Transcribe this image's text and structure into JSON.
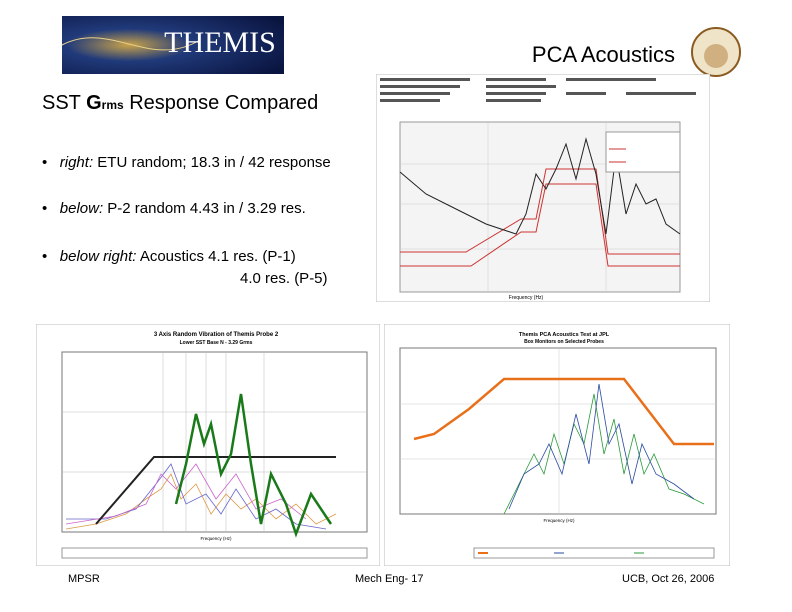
{
  "header": {
    "logo": "THEMIS",
    "title": "PCA Acoustics"
  },
  "slide_title": {
    "prefix": "SST ",
    "bold": "G",
    "sub": "rms",
    "suffix": " Response Compared"
  },
  "bullets": [
    {
      "lead": "right:",
      "text": " ETU random; 18.3 in / 42 response"
    },
    {
      "lead": "below:",
      "text": " P-2 random 4.43 in / 3.29 res."
    },
    {
      "lead": "below right:",
      "text": " Acoustics  4.1 res. (P-1)",
      "text2": "4.0 res. (P-5)"
    }
  ],
  "figures": {
    "top": {
      "xlabel": "Frequency (Hz)"
    },
    "left": {
      "title": "3 Axis Random Vibration of Themis Probe 2",
      "subtitle": "Lower SST Base N - 3.29 Grms",
      "xlabel": "Frequency (Hz)"
    },
    "right": {
      "title": "Themis PCA Acoustics Test at JPL",
      "subtitle": "Box Monitors on Selected Probes",
      "xlabel": "Frequency (Hz)"
    }
  },
  "footer": {
    "left": "MPSR",
    "center": "Mech Eng- 17",
    "right": "UCB, Oct 26, 2006"
  }
}
